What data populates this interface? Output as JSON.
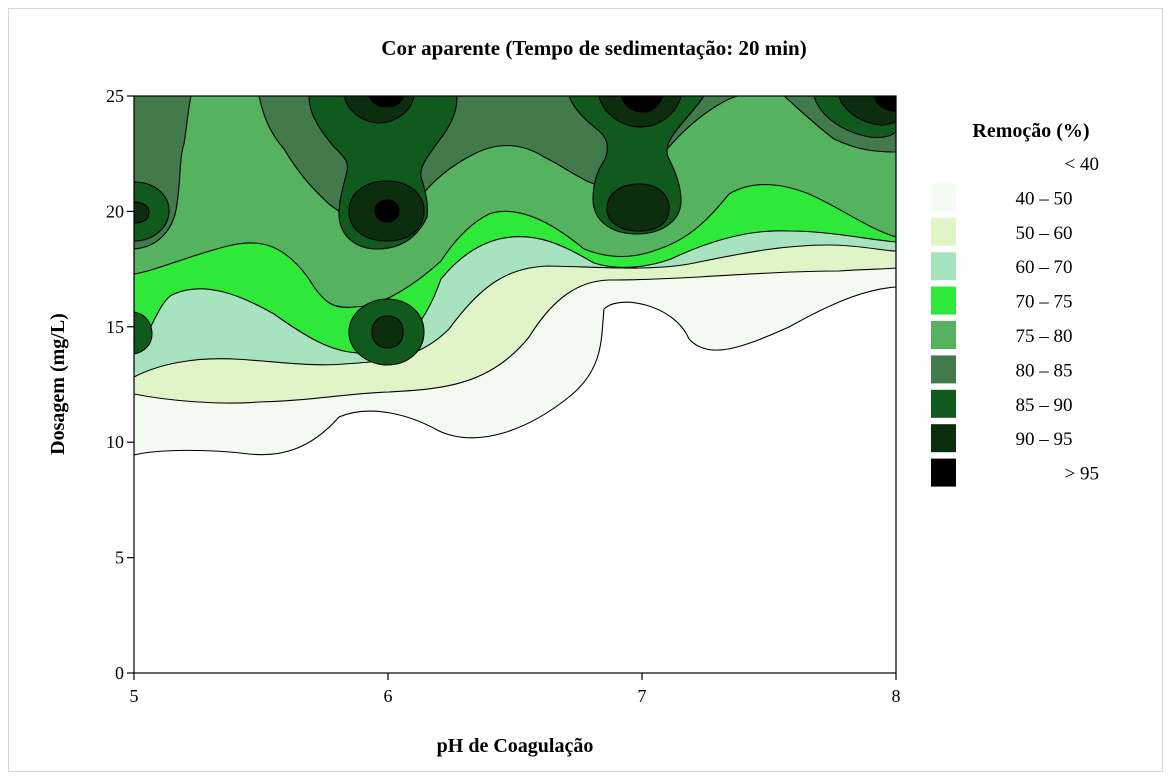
{
  "chart_data": {
    "type": "contour",
    "title": "Cor aparente (Tempo de sedimentação: 20 min)",
    "xlabel": "pH de Coagulação",
    "ylabel": "Dosagem (mg/L)",
    "xlim": [
      5,
      8
    ],
    "ylim": [
      0,
      25
    ],
    "xticks": [
      "5",
      "6",
      "7",
      "8"
    ],
    "yticks": [
      "0",
      "5",
      "10",
      "15",
      "20",
      "25"
    ],
    "legend": {
      "title": "Remoção (%)",
      "placement": "right",
      "levels": [
        {
          "label": "<  40",
          "color": "#ffffff"
        },
        {
          "label": "40  –  50",
          "color": "#f2faf2"
        },
        {
          "label": "50  –  60",
          "color": "#dff5c8"
        },
        {
          "label": "60  –  70",
          "color": "#a8e3c0"
        },
        {
          "label": "70  –  75",
          "color": "#2ee83a"
        },
        {
          "label": "75  –  80",
          "color": "#55b35f"
        },
        {
          "label": "80  –  85",
          "color": "#437a4b"
        },
        {
          "label": "85  –  90",
          "color": "#0f5a1c"
        },
        {
          "label": "90  –  95",
          "color": "#0c2e0e"
        },
        {
          "label": ">  95",
          "color": "#000000"
        }
      ]
    },
    "peaks": [
      {
        "x": 6.0,
        "y": 20,
        "level": ">  95"
      },
      {
        "x": 6.0,
        "y": 25,
        "level": ">  95"
      },
      {
        "x": 7.0,
        "y": 25,
        "level": ">  95"
      },
      {
        "x": 7.0,
        "y": 20,
        "level": "85  –  90"
      },
      {
        "x": 6.0,
        "y": 15,
        "level": "85  –  90"
      },
      {
        "x": 5.0,
        "y": 20,
        "level": "85  –  90"
      },
      {
        "x": 8.0,
        "y": 24,
        "level": "90  –  95"
      }
    ],
    "grid": false
  }
}
